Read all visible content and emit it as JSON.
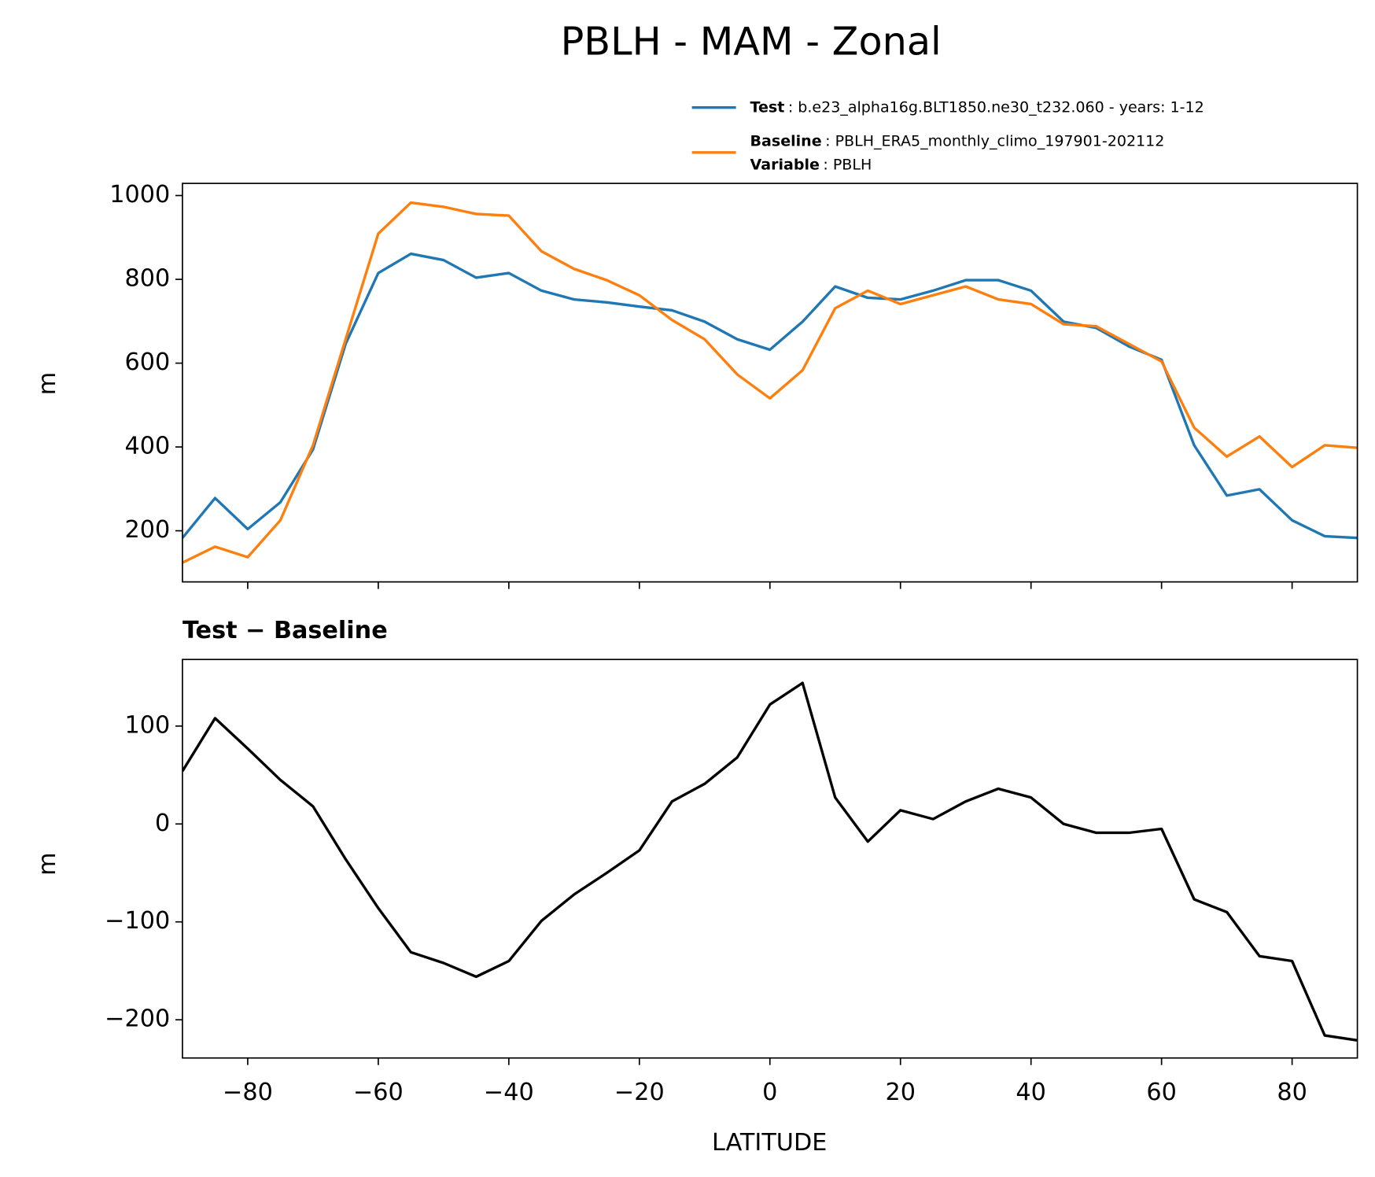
{
  "chart_data": [
    {
      "type": "line",
      "title": "PBLH - MAM - Zonal",
      "ylabel": "m",
      "x": [
        -90,
        -85,
        -80,
        -75,
        -70,
        -65,
        -60,
        -55,
        -50,
        -45,
        -40,
        -35,
        -30,
        -25,
        -20,
        -15,
        -10,
        -5,
        0,
        5,
        10,
        15,
        20,
        25,
        30,
        35,
        40,
        45,
        50,
        55,
        60,
        65,
        70,
        75,
        80,
        85,
        90
      ],
      "series": [
        {
          "name": "Test",
          "description": ": b.e23_alpha16g.BLT1850.ne30_t232.060 - years: 1-12",
          "color": "#1f77b4",
          "values": [
            183,
            278,
            204,
            268,
            394,
            646,
            815,
            861,
            846,
            804,
            815,
            773,
            752,
            745,
            735,
            726,
            699,
            657,
            632,
            699,
            783,
            756,
            752,
            773,
            798,
            798,
            773,
            699,
            684,
            640,
            608,
            404,
            284,
            299,
            225,
            187,
            183
          ]
        },
        {
          "name": "Baseline",
          "description": ": PBLH_ERA5_monthly_climo_197901-202112",
          "color": "#ff7f0e",
          "values": [
            124,
            162,
            137,
            225,
            404,
            657,
            909,
            983,
            973,
            956,
            952,
            867,
            825,
            798,
            762,
            703,
            657,
            573,
            516,
            583,
            731,
            773,
            741,
            762,
            783,
            752,
            741,
            693,
            688,
            646,
            604,
            446,
            377,
            425,
            352,
            404,
            398
          ]
        }
      ],
      "legend_extra": {
        "name": "Variable",
        "description": ": PBLH"
      },
      "xlim": [
        -90,
        90
      ],
      "xticks": [
        -80,
        -60,
        -40,
        -20,
        0,
        20,
        40,
        60,
        80
      ],
      "ylim": [
        78,
        1029
      ],
      "yticks": [
        200,
        400,
        600,
        800,
        1000
      ]
    },
    {
      "type": "line",
      "title": "Test − Baseline",
      "ylabel": "m",
      "xlabel": "LATITUDE",
      "x": [
        -90,
        -85,
        -80,
        -75,
        -70,
        -65,
        -60,
        -55,
        -50,
        -45,
        -40,
        -35,
        -30,
        -25,
        -20,
        -15,
        -10,
        -5,
        0,
        5,
        10,
        15,
        20,
        25,
        30,
        35,
        40,
        45,
        50,
        55,
        60,
        65,
        70,
        75,
        80,
        85,
        90
      ],
      "series": [
        {
          "color": "#000000",
          "values": [
            54,
            108,
            77,
            45,
            18,
            -36,
            -86,
            -131,
            -142,
            -156,
            -140,
            -99,
            -72,
            -50,
            -27,
            23,
            41,
            68,
            122,
            144,
            27,
            -18,
            14,
            5,
            23,
            36,
            27,
            0,
            -9,
            -9,
            -5,
            -77,
            -90,
            -135,
            -140,
            -216,
            -221
          ]
        }
      ],
      "xlim": [
        -90,
        90
      ],
      "xticks": [
        {
          "value": -80,
          "label": "−80"
        },
        {
          "value": -60,
          "label": "−60"
        },
        {
          "value": -40,
          "label": "−40"
        },
        {
          "value": -20,
          "label": "−20"
        },
        0,
        20,
        40,
        60,
        80
      ],
      "ylim": [
        -239,
        168
      ],
      "yticks": [
        {
          "value": -200,
          "label": "−200"
        },
        {
          "value": -100,
          "label": "−100"
        },
        0,
        100
      ]
    }
  ]
}
